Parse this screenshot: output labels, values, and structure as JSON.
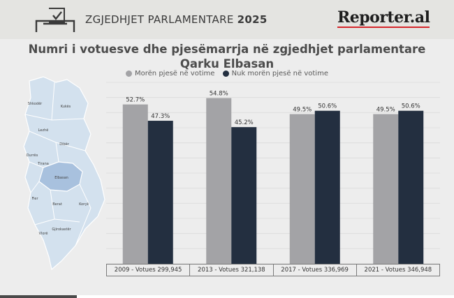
{
  "header": {
    "title_prefix": "ZGJEDHJET PARLAMENTARE",
    "title_year": "2025",
    "brand": "Reporter.al",
    "icon": "ballot-box-icon"
  },
  "map": {
    "labels": [
      "Shkodër",
      "Kukës",
      "Lezhë",
      "Dibër",
      "Durrës",
      "Tirana",
      "Elbasan",
      "Fier",
      "Berat",
      "Korçë",
      "Gjirokastër",
      "Vlorë"
    ],
    "highlight": "Elbasan",
    "highlight_color": "#a8c1de",
    "base_color": "#d3e1ee"
  },
  "chart_data": {
    "type": "bar",
    "title": "Numri i votuesve dhe pjesëmarrja në zgjedhjet parlamentare",
    "subtitle": "Qarku Elbasan",
    "categories": [
      "2009 - Votues 299,945",
      "2013 - Votues 321,138",
      "2017 - Votues 336,969",
      "2021 - Votues 346,948"
    ],
    "series": [
      {
        "name": "Morën pjesë në votime",
        "color": "#a3a3a6",
        "values": [
          52.7,
          54.8,
          49.5,
          49.5
        ],
        "labels": [
          "52.7%",
          "54.8%",
          "49.5%",
          "49.5%"
        ]
      },
      {
        "name": "Nuk morën pjesë në votime",
        "color": "#232f40",
        "values": [
          47.3,
          45.2,
          50.6,
          50.6
        ],
        "labels": [
          "47.3%",
          "45.2%",
          "50.6%",
          "50.6%"
        ]
      }
    ],
    "ylim": [
      0,
      60
    ],
    "grid": true,
    "legend": "top-center",
    "xlabel": "",
    "ylabel": ""
  }
}
